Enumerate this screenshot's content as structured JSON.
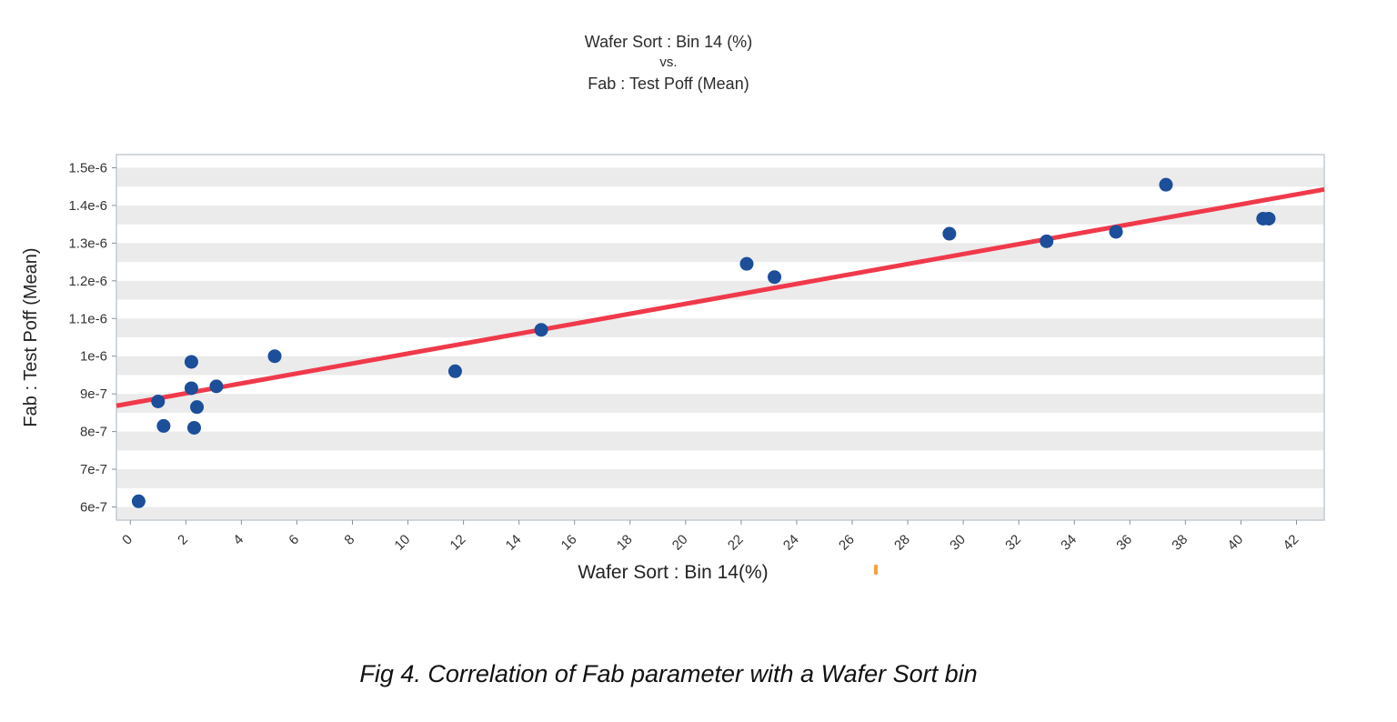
{
  "title": {
    "line1": "Wafer Sort : Bin 14 (%)",
    "line2": "vs.",
    "line3": "Fab : Test Poff (Mean)"
  },
  "caption": "Fig 4. Correlation of Fab parameter with a Wafer Sort bin",
  "chart_data": {
    "type": "scatter",
    "title": "Wafer Sort : Bin 14 (%) vs. Fab : Test Poff (Mean)",
    "xlabel": "Wafer Sort : Bin 14(%)",
    "ylabel": "Fab : Test Poff (Mean)",
    "xlim": [
      -0.5,
      43
    ],
    "ylim": [
      5.65e-07,
      1.535e-06
    ],
    "x_ticks": [
      0,
      2,
      4,
      6,
      8,
      10,
      12,
      14,
      16,
      18,
      20,
      22,
      24,
      26,
      28,
      30,
      32,
      34,
      36,
      38,
      40,
      42
    ],
    "y_tick_values": [
      6e-07,
      7e-07,
      8e-07,
      9e-07,
      1e-06,
      1.1e-06,
      1.2e-06,
      1.3e-06,
      1.4e-06,
      1.5e-06
    ],
    "y_tick_labels": [
      "6e-7",
      "7e-7",
      "8e-7",
      "9e-7",
      "1e-6",
      "1.1e-6",
      "1.2e-6",
      "1.3e-6",
      "1.4e-6",
      "1.5e-6"
    ],
    "points": [
      [
        0.3,
        6.15e-07
      ],
      [
        1.0,
        8.8e-07
      ],
      [
        1.2,
        8.15e-07
      ],
      [
        2.2,
        9.85e-07
      ],
      [
        2.2,
        9.15e-07
      ],
      [
        2.4,
        8.65e-07
      ],
      [
        2.3,
        8.1e-07
      ],
      [
        3.1,
        9.2e-07
      ],
      [
        5.2,
        1e-06
      ],
      [
        11.7,
        9.6e-07
      ],
      [
        14.8,
        1.07e-06
      ],
      [
        22.2,
        1.245e-06
      ],
      [
        23.2,
        1.21e-06
      ],
      [
        29.5,
        1.325e-06
      ],
      [
        33.0,
        1.305e-06
      ],
      [
        35.5,
        1.33e-06
      ],
      [
        37.3,
        1.455e-06
      ],
      [
        40.8,
        1.365e-06
      ],
      [
        41.0,
        1.365e-06
      ]
    ],
    "trend_line": {
      "slope": 1.32e-08,
      "intercept": 8.75e-07,
      "color": "#f0394b",
      "width": 5
    },
    "style": {
      "point_color": "#1c4e9a",
      "point_radius": 7.5,
      "stripe_color": "#ebebeb",
      "stripe_step": 5e-08,
      "border_color": "#c2ccd3",
      "tick_color": "#8a9299",
      "label_color": "#333333",
      "grid": false,
      "legend": "none"
    }
  }
}
